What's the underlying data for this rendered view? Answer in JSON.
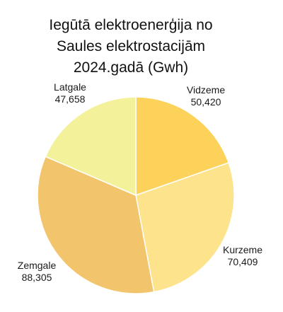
{
  "chart_data": {
    "type": "pie",
    "title_lines": [
      "Iegūtā elektroenerģija no",
      "Saules elektrostacijām",
      "2024.gadā (Gwh)"
    ],
    "slices": [
      {
        "label": "Vidzeme",
        "value_label": "50,420",
        "value": 50420,
        "color": "#FDD25A"
      },
      {
        "label": "Kurzeme",
        "value_label": "70,409",
        "value": 70409,
        "color": "#FDE38C"
      },
      {
        "label": "Zemgale",
        "value_label": "88,305",
        "value": 88305,
        "color": "#F2C46C"
      },
      {
        "label": "Latgale",
        "value_label": "47,658",
        "value": 47658,
        "color": "#F3F29A"
      }
    ],
    "start_angle": "12 o'clock",
    "direction": "clockwise",
    "legend": "none"
  }
}
